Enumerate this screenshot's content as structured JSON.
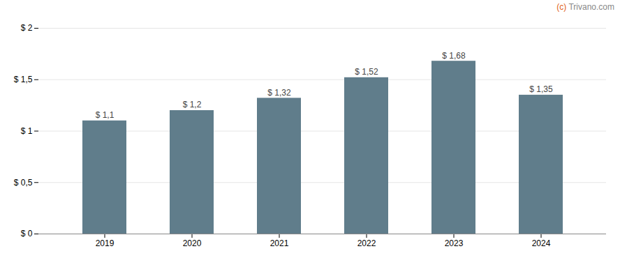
{
  "chart_data": {
    "type": "bar",
    "categories": [
      "2019",
      "2020",
      "2021",
      "2022",
      "2023",
      "2024"
    ],
    "values": [
      1.1,
      1.2,
      1.32,
      1.52,
      1.68,
      1.35
    ],
    "value_labels": [
      "$ 1,1",
      "$ 1,2",
      "$ 1,32",
      "$ 1,52",
      "$ 1,68",
      "$ 1,35"
    ],
    "data_labels": true,
    "color": "#607d8b",
    "ylim": [
      0,
      2.0
    ],
    "yticks": [
      {
        "value": 0,
        "label": "$ 0"
      },
      {
        "value": 0.5,
        "label": "$ 0,5"
      },
      {
        "value": 1.0,
        "label": "$ 1"
      },
      {
        "value": 1.5,
        "label": "$ 1,5"
      },
      {
        "value": 2.0,
        "label": "$ 2"
      }
    ],
    "grid": true,
    "annotations": [
      {
        "text": "(c)",
        "color": "#e06020"
      },
      {
        "text": " Trivano.com",
        "color": "#888888"
      }
    ]
  }
}
